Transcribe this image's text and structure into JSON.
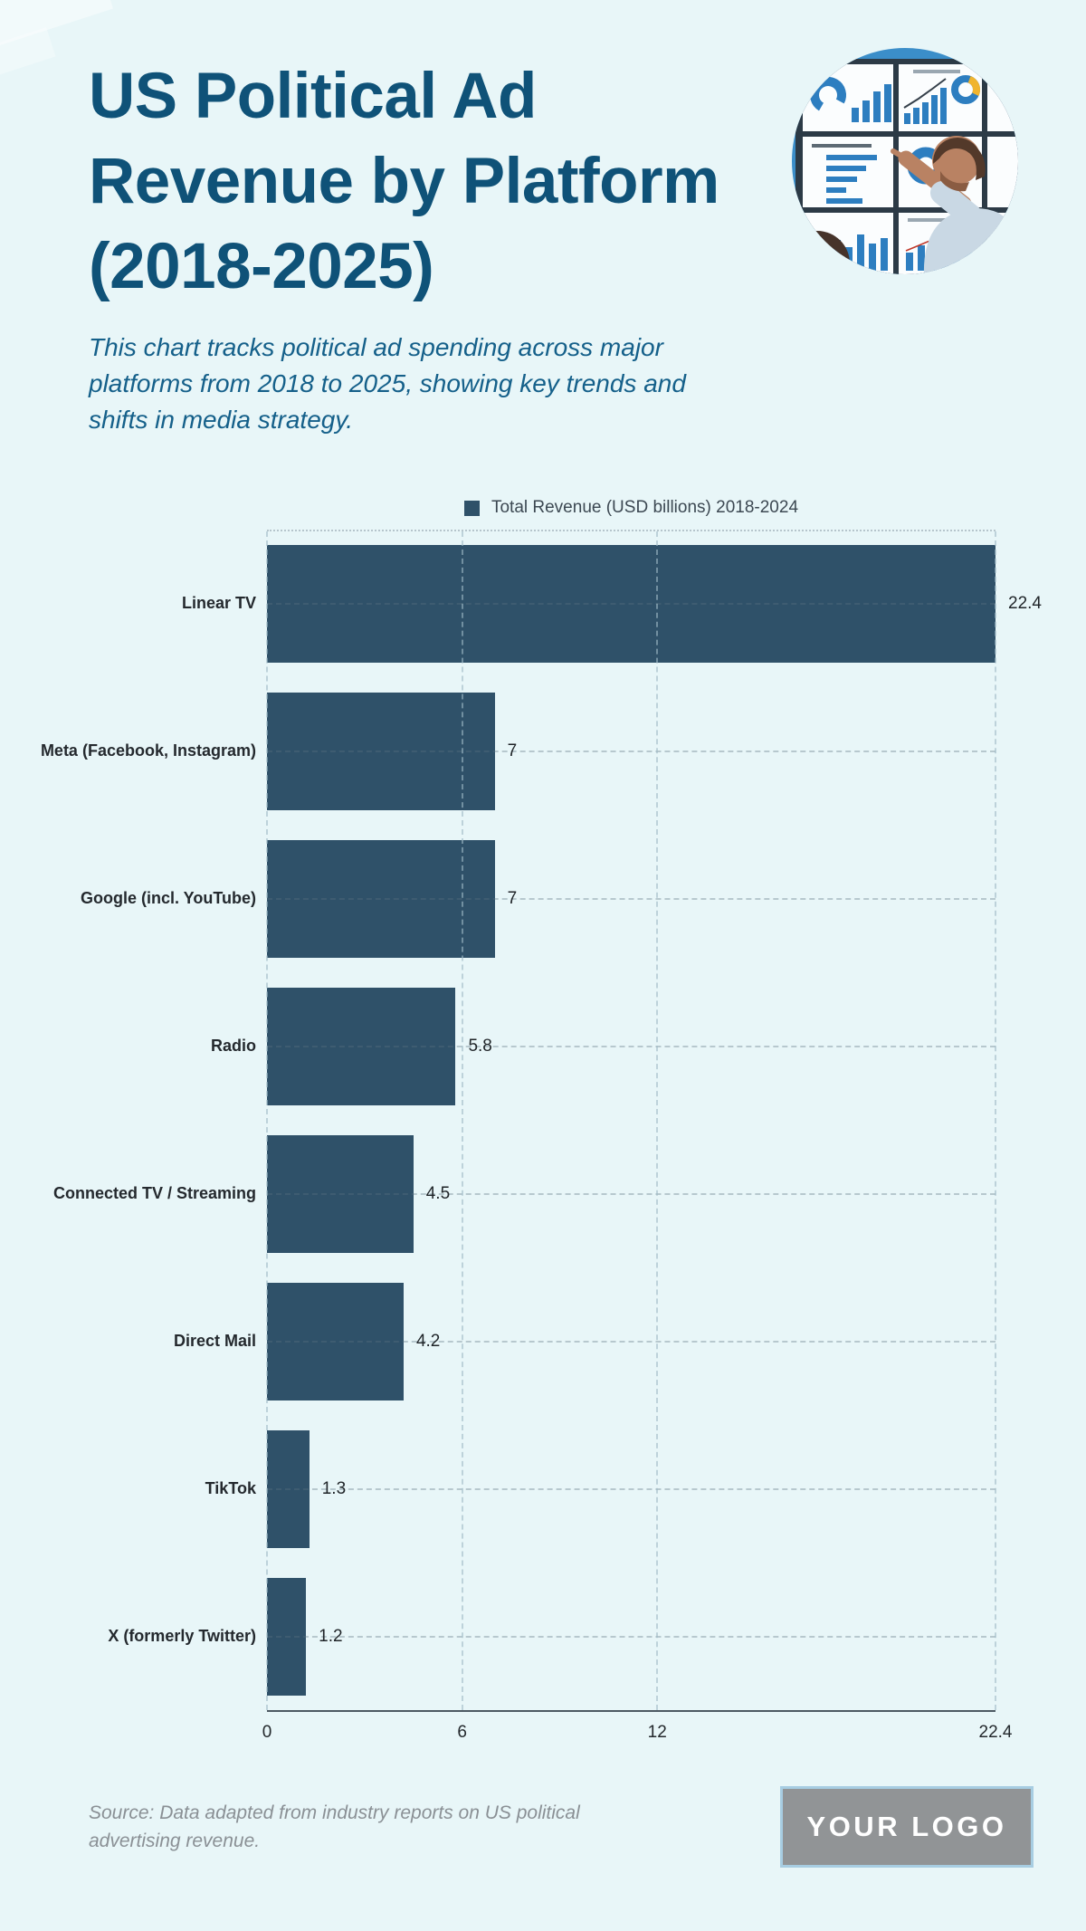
{
  "header": {
    "title_lines": [
      "US Political Ad",
      "Revenue by Platform",
      "(2018-2025)"
    ],
    "subtitle_lines": [
      "This chart tracks political ad spending across major",
      "platforms from 2018 to 2025, showing key trends and",
      "shifts in media strategy."
    ]
  },
  "chart_data": {
    "type": "bar",
    "orientation": "horizontal",
    "title": "US Political Ad Revenue by Platform (2018-2025)",
    "legend_label": "Total Revenue (USD billions) 2018-2024",
    "legend_position": "top-center",
    "categories": [
      "Linear TV",
      "Meta (Facebook, Instagram)",
      "Google (incl. YouTube)",
      "Radio",
      "Connected TV / Streaming",
      "Direct Mail",
      "TikTok",
      "X (formerly Twitter)"
    ],
    "values": [
      22.4,
      7,
      7,
      5.8,
      4.5,
      4.2,
      1.3,
      1.2
    ],
    "value_labels": [
      "22.4",
      "7",
      "7",
      "5.8",
      "4.5",
      "4.2",
      "1.3",
      "1.2"
    ],
    "x_tick_values": [
      0,
      6,
      12,
      22.4
    ],
    "x_tick_labels": [
      "0",
      "6",
      "12",
      "22.4"
    ],
    "xlim": [
      0,
      22.4
    ],
    "grid": "dashed",
    "bar_color": "#2f5169"
  },
  "footer": {
    "source_lines": [
      "Source: Data adapted from industry reports on US political",
      "advertising revenue."
    ],
    "logo_text": "YOUR LOGO"
  },
  "colors": {
    "background": "#e8f6f8",
    "title": "#0f5278",
    "subtitle": "#15608a",
    "bar": "#2f5169",
    "legend_text": "#3c4852",
    "category_label": "#24292e",
    "value_label": "#1f2428",
    "axis_line": "#4d5963",
    "gridline": "#b6c5cc",
    "source_text": "#8a9095",
    "logo_background": "#919496",
    "logo_border": "#a7cde2",
    "logo_text": "#ffffff"
  }
}
